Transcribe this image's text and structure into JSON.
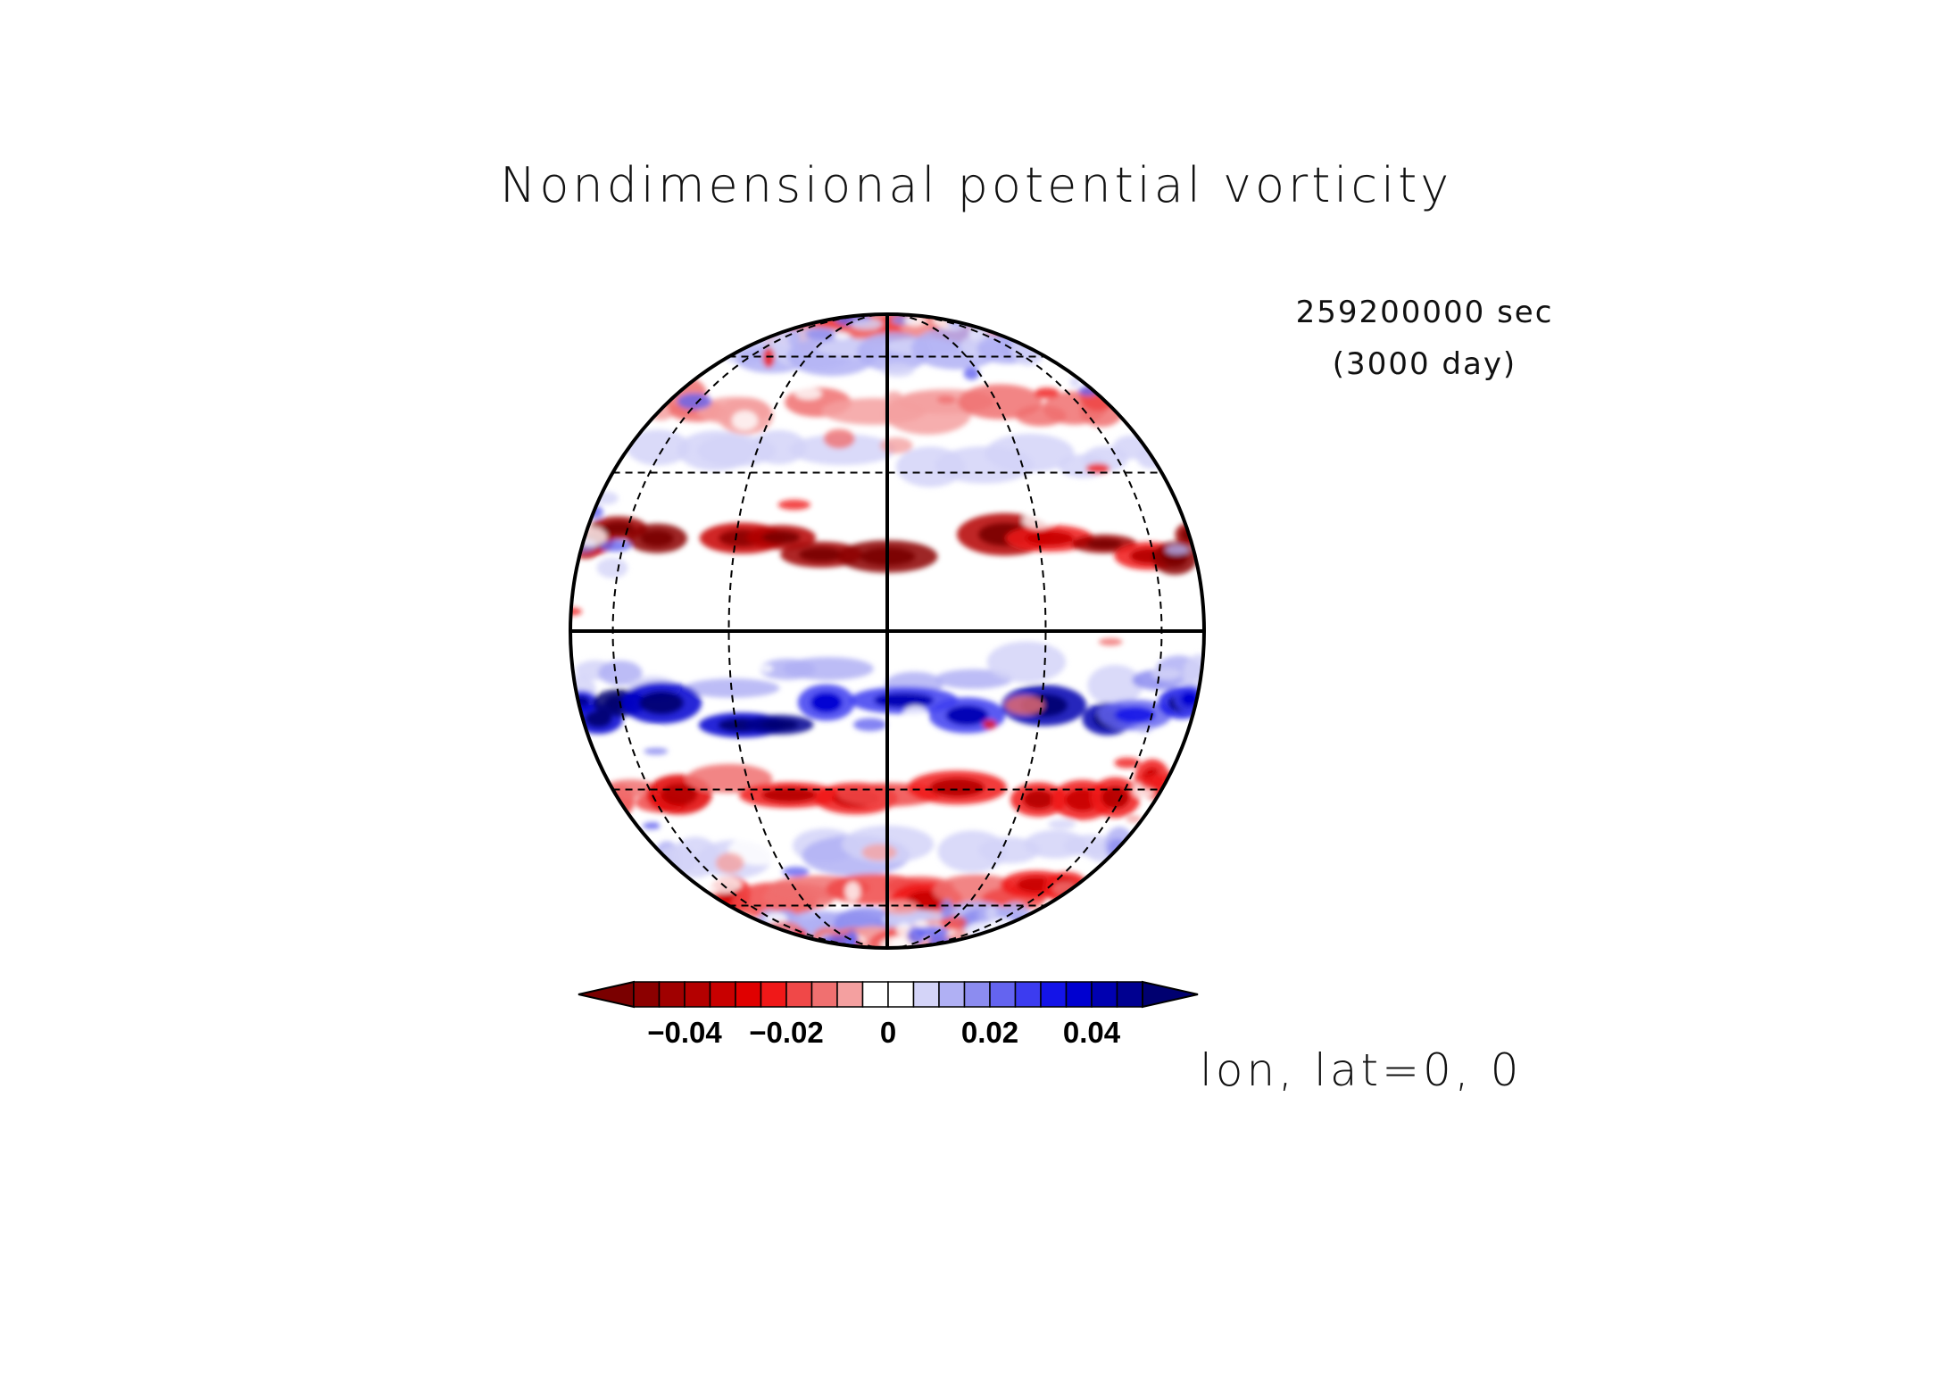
{
  "title": "Nondimensional potential vorticity",
  "time": {
    "seconds": "259200000 sec",
    "days": "(3000 day)"
  },
  "projection_center": "lon, lat=0, 0",
  "colorbar": {
    "tick_labels": [
      "−0.04",
      "−0.02",
      "0",
      "0.02",
      "0.04"
    ],
    "tick_values": [
      -0.04,
      -0.02,
      0,
      0.02,
      0.04
    ],
    "levels": [
      -0.05,
      -0.045,
      -0.04,
      -0.035,
      -0.03,
      -0.025,
      -0.02,
      -0.015,
      -0.01,
      -0.005,
      0,
      0.005,
      0.01,
      0.015,
      0.02,
      0.025,
      0.03,
      0.035,
      0.04,
      0.045,
      0.05
    ],
    "colors": [
      "#7a0000",
      "#8c0000",
      "#a00000",
      "#b40000",
      "#c80000",
      "#e00000",
      "#f01818",
      "#f04848",
      "#f07070",
      "#f4a0a0",
      "#ffffff",
      "#ffffff",
      "#d4d4f8",
      "#b0b0f4",
      "#8c8cf0",
      "#6464f0",
      "#3c3cf0",
      "#1414e8",
      "#0000d0",
      "#0000b0",
      "#000090",
      "#000070"
    ]
  },
  "map": {
    "projection": "orthographic",
    "center_lon": 0,
    "center_lat": 0,
    "graticule": {
      "lat_lines": [
        -60,
        -30,
        30,
        60
      ],
      "lon_lines": [
        -60,
        -30,
        30,
        60
      ]
    },
    "field_bands": [
      {
        "lat": 72,
        "value": -0.015
      },
      {
        "lat": 62,
        "value": 0.01
      },
      {
        "lat": 45,
        "value": -0.012
      },
      {
        "lat": 33,
        "value": 0.008
      },
      {
        "lat": 16,
        "value": -0.035
      },
      {
        "lat": -8,
        "value": 0.012
      },
      {
        "lat": -15,
        "value": 0.038
      },
      {
        "lat": -30,
        "value": -0.02
      },
      {
        "lat": -45,
        "value": 0.008
      },
      {
        "lat": -56,
        "value": -0.018
      },
      {
        "lat": -68,
        "value": 0.015
      },
      {
        "lat": -80,
        "value": -0.012
      }
    ]
  }
}
